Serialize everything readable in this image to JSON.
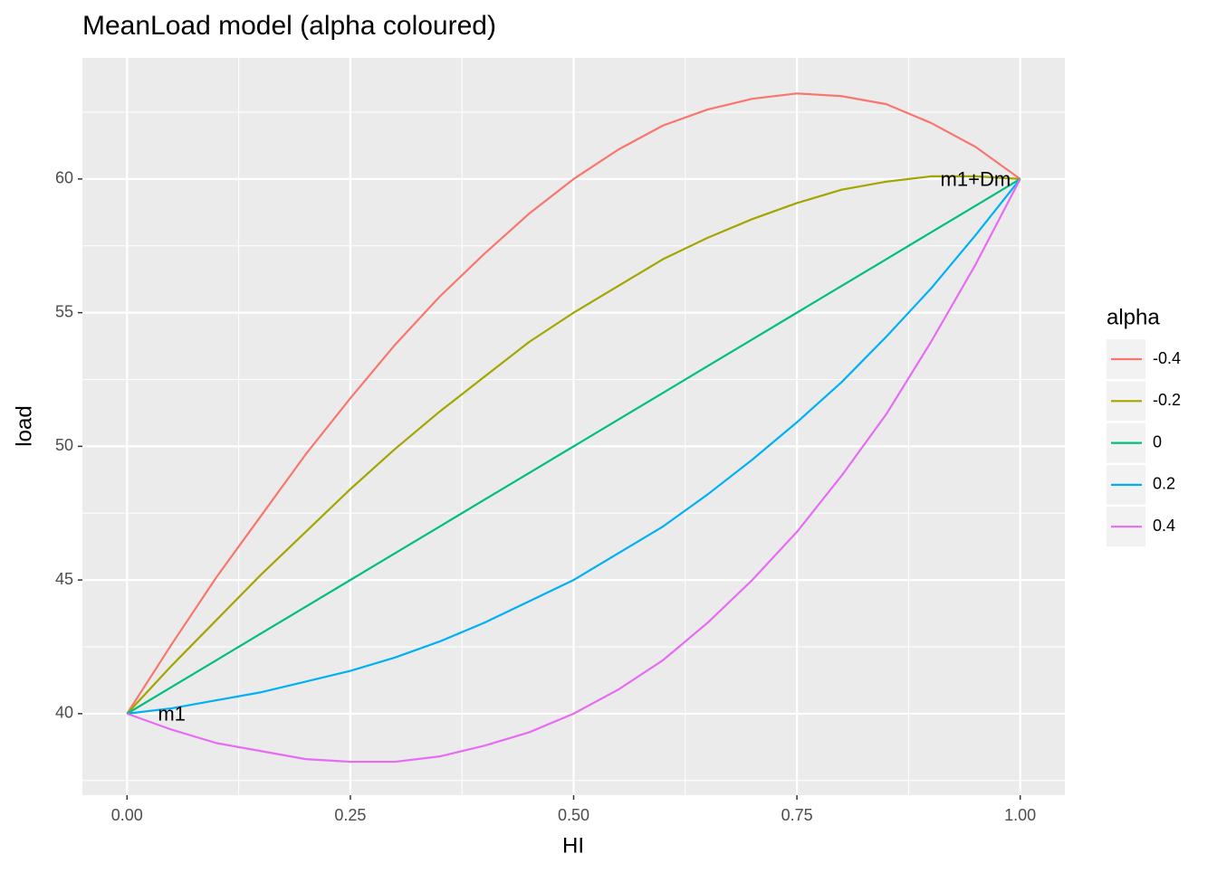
{
  "chart_data": {
    "type": "line",
    "title": "MeanLoad model (alpha coloured)",
    "x_label": "HI",
    "y_label": "load",
    "legend_title": "alpha",
    "legend": "right",
    "grid": true,
    "x": [
      0,
      0.05,
      0.1,
      0.15,
      0.2,
      0.25,
      0.3,
      0.35,
      0.4,
      0.45,
      0.5,
      0.55,
      0.6,
      0.65,
      0.7,
      0.75,
      0.8,
      0.85,
      0.9,
      0.95,
      1
    ],
    "series": [
      {
        "name": "-0.4",
        "color": "#F8766D",
        "values": [
          40,
          42.6,
          45.1,
          47.4,
          49.7,
          51.8,
          53.8,
          55.6,
          57.2,
          58.7,
          60.0,
          61.1,
          62.0,
          62.6,
          63.0,
          63.2,
          63.1,
          62.8,
          62.1,
          61.2,
          60
        ]
      },
      {
        "name": "-0.2",
        "color": "#A3A500",
        "values": [
          40,
          41.8,
          43.5,
          45.2,
          46.8,
          48.4,
          49.9,
          51.3,
          52.6,
          53.9,
          55.0,
          56.0,
          57.0,
          57.8,
          58.5,
          59.1,
          59.6,
          59.9,
          60.1,
          60.1,
          60
        ]
      },
      {
        "name": "0",
        "color": "#00BF7D",
        "values": [
          40,
          41,
          42,
          43,
          44,
          45,
          46,
          47,
          48,
          49,
          50,
          51,
          52,
          53,
          54,
          55,
          56,
          57,
          58,
          59,
          60
        ]
      },
      {
        "name": "0.2",
        "color": "#00B0F6",
        "values": [
          40,
          40.2,
          40.5,
          40.8,
          41.2,
          41.6,
          42.1,
          42.7,
          43.4,
          44.2,
          45.0,
          46.0,
          47.0,
          48.2,
          49.5,
          50.9,
          52.4,
          54.1,
          55.9,
          57.9,
          60
        ]
      },
      {
        "name": "0.4",
        "color": "#E76BF3",
        "values": [
          40,
          39.4,
          38.9,
          38.6,
          38.3,
          38.2,
          38.2,
          38.4,
          38.8,
          39.3,
          40.0,
          40.9,
          42.0,
          43.4,
          45.0,
          46.8,
          48.9,
          51.2,
          53.9,
          56.8,
          60
        ]
      }
    ],
    "annotations": [
      {
        "text": "m1",
        "x": 0.05,
        "y": 40
      },
      {
        "text": "m1+Dm",
        "x": 0.95,
        "y": 60
      }
    ],
    "xlim": [
      -0.05,
      1.05
    ],
    "ylim": [
      36.95,
      64.53
    ],
    "xticks": [
      {
        "value": 0,
        "label": "0.00"
      },
      {
        "value": 0.25,
        "label": "0.25"
      },
      {
        "value": 0.5,
        "label": "0.50"
      },
      {
        "value": 0.75,
        "label": "0.75"
      },
      {
        "value": 1,
        "label": "1.00"
      }
    ],
    "yticks": [
      40,
      45,
      50,
      55,
      60
    ]
  }
}
